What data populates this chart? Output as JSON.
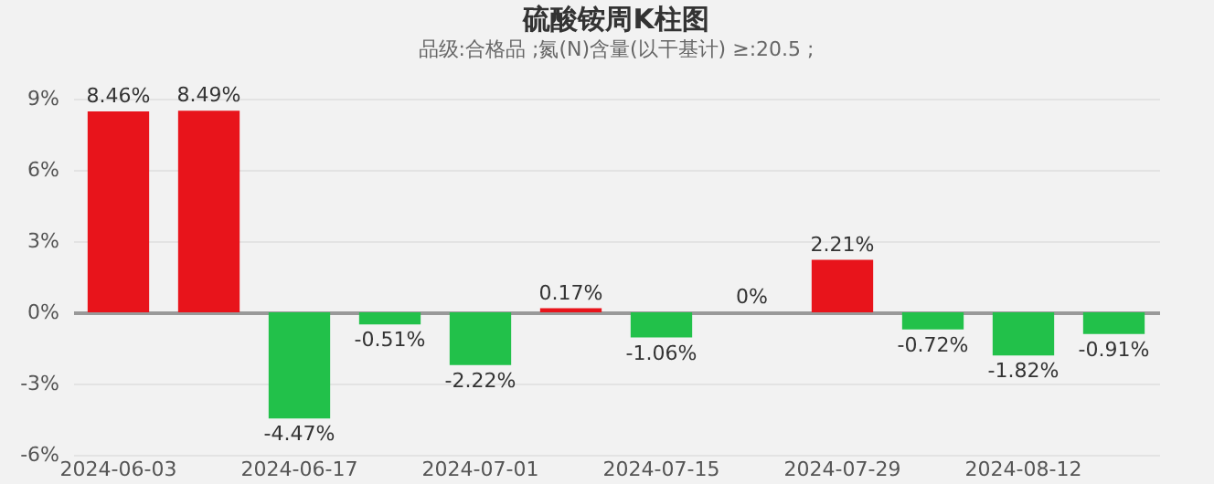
{
  "chart_data": {
    "type": "bar",
    "title": "硫酸铵周K柱图",
    "subtitle": "品级:合格品 ;氮(N)含量(以干基计) ≥:20.5 ;",
    "categories": [
      "2024-06-03",
      null,
      "2024-06-17",
      null,
      "2024-07-01",
      null,
      "2024-07-15",
      null,
      "2024-07-29",
      null,
      "2024-08-12",
      null
    ],
    "values": [
      8.46,
      8.49,
      -4.47,
      -0.51,
      -2.22,
      0.17,
      -1.06,
      0,
      2.21,
      -0.72,
      -1.82,
      -0.91
    ],
    "value_labels": [
      "8.46%",
      "8.49%",
      "-4.47%",
      "-0.51%",
      "-2.22%",
      "0.17%",
      "-1.06%",
      "0%",
      "2.21%",
      "-0.72%",
      "-1.82%",
      "-0.91%"
    ],
    "colors": [
      "#e8141b",
      "#e8141b",
      "#22c14a",
      "#22c14a",
      "#22c14a",
      "#e8141b",
      "#22c14a",
      "#e8141b",
      "#e8141b",
      "#22c14a",
      "#22c14a",
      "#22c14a"
    ],
    "ylim": [
      -6,
      9
    ],
    "yticks": [
      {
        "value": -6,
        "label": "-6%"
      },
      {
        "value": -3,
        "label": "-3%"
      },
      {
        "value": 0,
        "label": "0%"
      },
      {
        "value": 3,
        "label": "3%"
      },
      {
        "value": 6,
        "label": "6%"
      },
      {
        "value": 9,
        "label": "9%"
      }
    ],
    "grid": "y"
  }
}
